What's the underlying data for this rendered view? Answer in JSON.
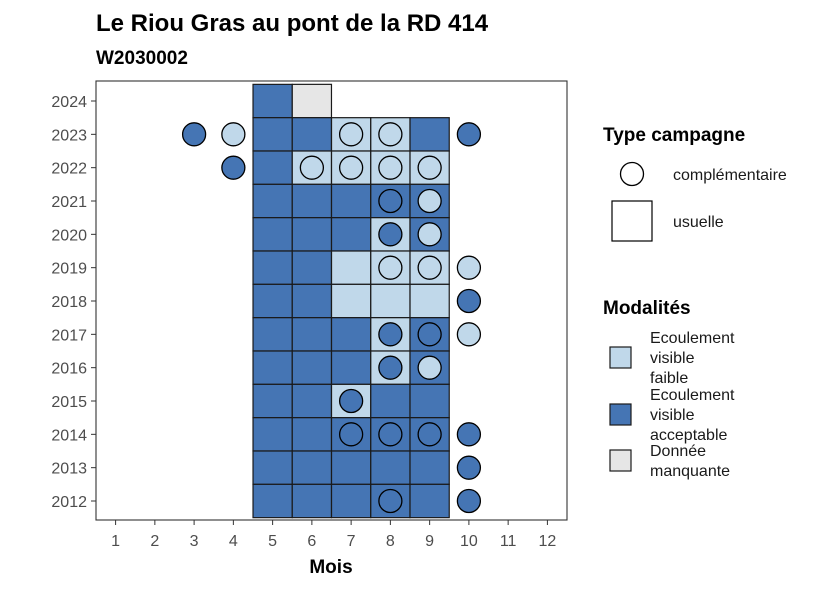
{
  "colors": {
    "Ecoulement visible faible": "#c0d8ea",
    "Ecoulement visible acceptable": "#4575b4",
    "Donnée manquante": "#e6e6e6"
  },
  "chart_data": {
    "type": "heatmap",
    "title": "Le Riou Gras au pont de la RD 414",
    "subtitle": "W2030002",
    "xlabel": "Mois",
    "ylabel": "",
    "x_ticks": [
      "1",
      "2",
      "3",
      "4",
      "5",
      "6",
      "7",
      "8",
      "9",
      "10",
      "11",
      "12"
    ],
    "y_ticks": [
      "2012",
      "2013",
      "2014",
      "2015",
      "2016",
      "2017",
      "2018",
      "2019",
      "2020",
      "2021",
      "2022",
      "2023",
      "2024"
    ],
    "grid": false,
    "legend_position": "right",
    "legend_type": {
      "title": "Type campagne",
      "items": [
        {
          "label": "complémentaire",
          "shape": "circle"
        },
        {
          "label": "usuelle",
          "shape": "square"
        }
      ]
    },
    "legend_modalites": {
      "title": "Modalités",
      "items": [
        {
          "lines": [
            "Ecoulement",
            "visible",
            "faible"
          ],
          "key": "Ecoulement visible faible"
        },
        {
          "lines": [
            "Ecoulement",
            "visible",
            "acceptable"
          ],
          "key": "Ecoulement visible acceptable"
        },
        {
          "lines": [
            "Donnée",
            "manquante"
          ],
          "key": "Donnée manquante"
        }
      ]
    },
    "usuelle": [
      {
        "year": 2024,
        "month": 5,
        "modalite": "Ecoulement visible acceptable"
      },
      {
        "year": 2024,
        "month": 6,
        "modalite": "Donnée manquante"
      },
      {
        "year": 2023,
        "month": 5,
        "modalite": "Ecoulement visible acceptable"
      },
      {
        "year": 2023,
        "month": 6,
        "modalite": "Ecoulement visible acceptable"
      },
      {
        "year": 2023,
        "month": 7,
        "modalite": "Ecoulement visible faible"
      },
      {
        "year": 2023,
        "month": 8,
        "modalite": "Ecoulement visible faible"
      },
      {
        "year": 2023,
        "month": 9,
        "modalite": "Ecoulement visible acceptable"
      },
      {
        "year": 2022,
        "month": 5,
        "modalite": "Ecoulement visible acceptable"
      },
      {
        "year": 2022,
        "month": 6,
        "modalite": "Ecoulement visible faible"
      },
      {
        "year": 2022,
        "month": 7,
        "modalite": "Ecoulement visible faible"
      },
      {
        "year": 2022,
        "month": 8,
        "modalite": "Ecoulement visible faible"
      },
      {
        "year": 2022,
        "month": 9,
        "modalite": "Ecoulement visible faible"
      },
      {
        "year": 2021,
        "month": 5,
        "modalite": "Ecoulement visible acceptable"
      },
      {
        "year": 2021,
        "month": 6,
        "modalite": "Ecoulement visible acceptable"
      },
      {
        "year": 2021,
        "month": 7,
        "modalite": "Ecoulement visible acceptable"
      },
      {
        "year": 2021,
        "month": 8,
        "modalite": "Ecoulement visible acceptable"
      },
      {
        "year": 2021,
        "month": 9,
        "modalite": "Ecoulement visible acceptable"
      },
      {
        "year": 2020,
        "month": 5,
        "modalite": "Ecoulement visible acceptable"
      },
      {
        "year": 2020,
        "month": 6,
        "modalite": "Ecoulement visible acceptable"
      },
      {
        "year": 2020,
        "month": 7,
        "modalite": "Ecoulement visible acceptable"
      },
      {
        "year": 2020,
        "month": 8,
        "modalite": "Ecoulement visible faible"
      },
      {
        "year": 2020,
        "month": 9,
        "modalite": "Ecoulement visible acceptable"
      },
      {
        "year": 2019,
        "month": 5,
        "modalite": "Ecoulement visible acceptable"
      },
      {
        "year": 2019,
        "month": 6,
        "modalite": "Ecoulement visible acceptable"
      },
      {
        "year": 2019,
        "month": 7,
        "modalite": "Ecoulement visible faible"
      },
      {
        "year": 2019,
        "month": 8,
        "modalite": "Ecoulement visible faible"
      },
      {
        "year": 2019,
        "month": 9,
        "modalite": "Ecoulement visible faible"
      },
      {
        "year": 2018,
        "month": 5,
        "modalite": "Ecoulement visible acceptable"
      },
      {
        "year": 2018,
        "month": 6,
        "modalite": "Ecoulement visible acceptable"
      },
      {
        "year": 2018,
        "month": 7,
        "modalite": "Ecoulement visible faible"
      },
      {
        "year": 2018,
        "month": 8,
        "modalite": "Ecoulement visible faible"
      },
      {
        "year": 2018,
        "month": 9,
        "modalite": "Ecoulement visible faible"
      },
      {
        "year": 2017,
        "month": 5,
        "modalite": "Ecoulement visible acceptable"
      },
      {
        "year": 2017,
        "month": 6,
        "modalite": "Ecoulement visible acceptable"
      },
      {
        "year": 2017,
        "month": 7,
        "modalite": "Ecoulement visible acceptable"
      },
      {
        "year": 2017,
        "month": 8,
        "modalite": "Ecoulement visible faible"
      },
      {
        "year": 2017,
        "month": 9,
        "modalite": "Ecoulement visible acceptable"
      },
      {
        "year": 2016,
        "month": 5,
        "modalite": "Ecoulement visible acceptable"
      },
      {
        "year": 2016,
        "month": 6,
        "modalite": "Ecoulement visible acceptable"
      },
      {
        "year": 2016,
        "month": 7,
        "modalite": "Ecoulement visible acceptable"
      },
      {
        "year": 2016,
        "month": 8,
        "modalite": "Ecoulement visible faible"
      },
      {
        "year": 2016,
        "month": 9,
        "modalite": "Ecoulement visible acceptable"
      },
      {
        "year": 2015,
        "month": 5,
        "modalite": "Ecoulement visible acceptable"
      },
      {
        "year": 2015,
        "month": 6,
        "modalite": "Ecoulement visible acceptable"
      },
      {
        "year": 2015,
        "month": 7,
        "modalite": "Ecoulement visible faible"
      },
      {
        "year": 2015,
        "month": 8,
        "modalite": "Ecoulement visible acceptable"
      },
      {
        "year": 2015,
        "month": 9,
        "modalite": "Ecoulement visible acceptable"
      },
      {
        "year": 2014,
        "month": 5,
        "modalite": "Ecoulement visible acceptable"
      },
      {
        "year": 2014,
        "month": 6,
        "modalite": "Ecoulement visible acceptable"
      },
      {
        "year": 2014,
        "month": 7,
        "modalite": "Ecoulement visible acceptable"
      },
      {
        "year": 2014,
        "month": 8,
        "modalite": "Ecoulement visible acceptable"
      },
      {
        "year": 2014,
        "month": 9,
        "modalite": "Ecoulement visible acceptable"
      },
      {
        "year": 2013,
        "month": 5,
        "modalite": "Ecoulement visible acceptable"
      },
      {
        "year": 2013,
        "month": 6,
        "modalite": "Ecoulement visible acceptable"
      },
      {
        "year": 2013,
        "month": 7,
        "modalite": "Ecoulement visible acceptable"
      },
      {
        "year": 2013,
        "month": 8,
        "modalite": "Ecoulement visible acceptable"
      },
      {
        "year": 2013,
        "month": 9,
        "modalite": "Ecoulement visible acceptable"
      },
      {
        "year": 2012,
        "month": 5,
        "modalite": "Ecoulement visible acceptable"
      },
      {
        "year": 2012,
        "month": 6,
        "modalite": "Ecoulement visible acceptable"
      },
      {
        "year": 2012,
        "month": 7,
        "modalite": "Ecoulement visible acceptable"
      },
      {
        "year": 2012,
        "month": 8,
        "modalite": "Ecoulement visible acceptable"
      },
      {
        "year": 2012,
        "month": 9,
        "modalite": "Ecoulement visible acceptable"
      }
    ],
    "complementaire": [
      {
        "year": 2023,
        "month": 3,
        "modalite": "Ecoulement visible acceptable"
      },
      {
        "year": 2023,
        "month": 4,
        "modalite": "Ecoulement visible faible"
      },
      {
        "year": 2023,
        "month": 7,
        "modalite": "Ecoulement visible faible"
      },
      {
        "year": 2023,
        "month": 8,
        "modalite": "Ecoulement visible faible"
      },
      {
        "year": 2023,
        "month": 10,
        "modalite": "Ecoulement visible acceptable"
      },
      {
        "year": 2022,
        "month": 4,
        "modalite": "Ecoulement visible acceptable"
      },
      {
        "year": 2022,
        "month": 6,
        "modalite": "Ecoulement visible faible"
      },
      {
        "year": 2022,
        "month": 7,
        "modalite": "Ecoulement visible faible"
      },
      {
        "year": 2022,
        "month": 8,
        "modalite": "Ecoulement visible faible"
      },
      {
        "year": 2022,
        "month": 9,
        "modalite": "Ecoulement visible faible"
      },
      {
        "year": 2021,
        "month": 8,
        "modalite": "Ecoulement visible acceptable"
      },
      {
        "year": 2021,
        "month": 9,
        "modalite": "Ecoulement visible faible"
      },
      {
        "year": 2020,
        "month": 8,
        "modalite": "Ecoulement visible acceptable"
      },
      {
        "year": 2020,
        "month": 9,
        "modalite": "Ecoulement visible faible"
      },
      {
        "year": 2019,
        "month": 8,
        "modalite": "Ecoulement visible faible"
      },
      {
        "year": 2019,
        "month": 9,
        "modalite": "Ecoulement visible faible"
      },
      {
        "year": 2019,
        "month": 10,
        "modalite": "Ecoulement visible faible"
      },
      {
        "year": 2018,
        "month": 10,
        "modalite": "Ecoulement visible acceptable"
      },
      {
        "year": 2017,
        "month": 8,
        "modalite": "Ecoulement visible acceptable"
      },
      {
        "year": 2017,
        "month": 9,
        "modalite": "Ecoulement visible acceptable"
      },
      {
        "year": 2017,
        "month": 10,
        "modalite": "Ecoulement visible faible"
      },
      {
        "year": 2016,
        "month": 8,
        "modalite": "Ecoulement visible acceptable"
      },
      {
        "year": 2016,
        "month": 9,
        "modalite": "Ecoulement visible faible"
      },
      {
        "year": 2015,
        "month": 7,
        "modalite": "Ecoulement visible acceptable"
      },
      {
        "year": 2014,
        "month": 7,
        "modalite": "Ecoulement visible acceptable"
      },
      {
        "year": 2014,
        "month": 8,
        "modalite": "Ecoulement visible acceptable"
      },
      {
        "year": 2014,
        "month": 9,
        "modalite": "Ecoulement visible acceptable"
      },
      {
        "year": 2014,
        "month": 10,
        "modalite": "Ecoulement visible acceptable"
      },
      {
        "year": 2013,
        "month": 10,
        "modalite": "Ecoulement visible acceptable"
      },
      {
        "year": 2012,
        "month": 8,
        "modalite": "Ecoulement visible acceptable"
      },
      {
        "year": 2012,
        "month": 10,
        "modalite": "Ecoulement visible acceptable"
      }
    ]
  }
}
